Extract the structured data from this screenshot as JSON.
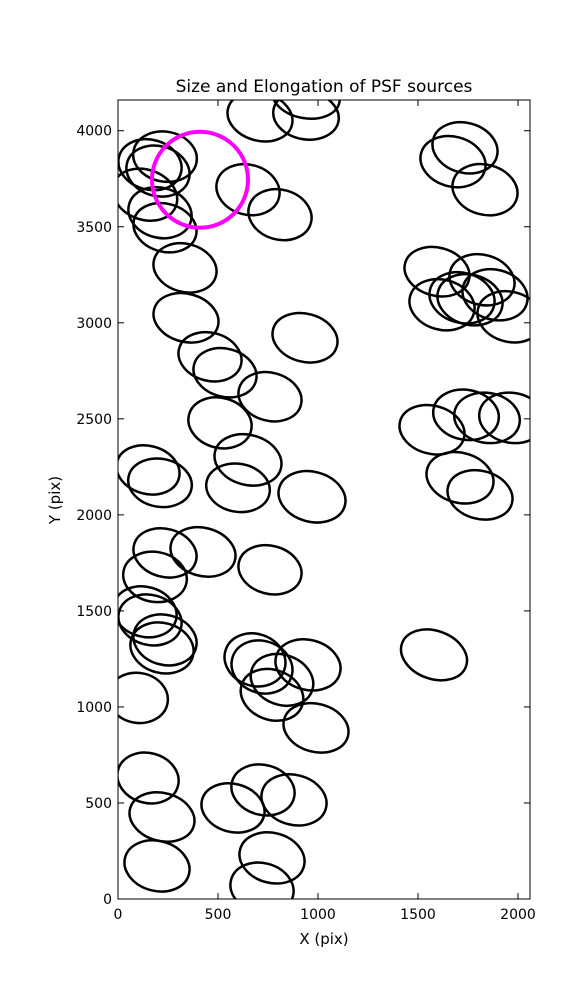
{
  "chart_data": {
    "type": "ellipse",
    "title": "Size and Elongation of PSF sources",
    "x_label": "X (pix)",
    "y_label": "Y (pix)",
    "xlim": [
      0,
      2060
    ],
    "ylim": [
      0,
      4160
    ],
    "xticks": [
      0,
      500,
      1000,
      1500,
      2000
    ],
    "yticks": [
      0,
      500,
      1000,
      1500,
      2000,
      2500,
      3000,
      3500,
      4000
    ],
    "color": "#000000",
    "x": [
      940,
      940,
      710,
      235,
      160,
      200,
      135,
      210,
      235,
      650,
      810,
      335,
      340,
      460,
      535,
      760,
      935,
      510,
      650,
      600,
      970,
      150,
      210,
      235,
      425,
      760,
      185,
      135,
      160,
      235,
      220,
      685,
      720,
      950,
      820,
      770,
      100,
      990,
      150,
      220,
      575,
      725,
      880,
      195,
      770,
      720,
      1580,
      1570,
      1710,
      1810,
      1740,
      1845,
      1970,
      1595,
      1620,
      1720,
      1760,
      1820,
      1885,
      1960,
      1735,
      1675,
      1835
    ],
    "y": [
      4180,
      4080,
      4073,
      3865,
      3823,
      3790,
      3667,
      3573,
      3495,
      3693,
      3563,
      3286,
      3026,
      2823,
      2740,
      2615,
      2922,
      2479,
      2286,
      2141,
      2094,
      2234,
      2167,
      1802,
      1807,
      1714,
      1677,
      1495,
      1453,
      1349,
      1307,
      1245,
      1208,
      1219,
      1141,
      1063,
      1047,
      891,
      630,
      427,
      474,
      568,
      516,
      172,
      214,
      57,
      1271,
      2443,
      2193,
      2104,
      2521,
      2505,
      2505,
      3266,
      3094,
      3130,
      3120,
      3224,
      3146,
      3031,
      3911,
      3839,
      3693
    ],
    "width": [
      340,
      330,
      330,
      320,
      320,
      320,
      330,
      320,
      320,
      320,
      320,
      320,
      330,
      320,
      320,
      320,
      330,
      320,
      340,
      320,
      340,
      320,
      320,
      320,
      330,
      320,
      320,
      320,
      320,
      320,
      320,
      310,
      310,
      330,
      320,
      320,
      300,
      330,
      310,
      330,
      320,
      320,
      330,
      330,
      330,
      320,
      340,
      330,
      340,
      330,
      330,
      330,
      330,
      330,
      330,
      330,
      330,
      330,
      330,
      330,
      330,
      330,
      330
    ],
    "height": [
      230,
      250,
      250,
      260,
      260,
      260,
      260,
      260,
      250,
      260,
      260,
      250,
      250,
      250,
      250,
      250,
      250,
      260,
      260,
      250,
      260,
      250,
      250,
      250,
      250,
      250,
      260,
      260,
      260,
      260,
      260,
      270,
      270,
      260,
      260,
      260,
      260,
      250,
      260,
      250,
      250,
      260,
      260,
      260,
      260,
      260,
      250,
      250,
      260,
      250,
      260,
      260,
      260,
      250,
      260,
      260,
      260,
      260,
      260,
      260,
      260,
      260,
      260
    ],
    "angle": [
      -10,
      -10,
      -15,
      -10,
      -15,
      -15,
      -20,
      -15,
      -15,
      -15,
      -15,
      -15,
      -15,
      -15,
      -15,
      -15,
      -15,
      -15,
      -15,
      -10,
      -15,
      -15,
      -10,
      -15,
      -15,
      -15,
      -10,
      -15,
      -15,
      -15,
      -15,
      -20,
      -20,
      -15,
      -20,
      -20,
      -10,
      -15,
      -15,
      -15,
      -15,
      -15,
      -15,
      -15,
      -15,
      -15,
      -20,
      -15,
      -15,
      -15,
      -10,
      -10,
      -10,
      -15,
      -15,
      -15,
      -15,
      -15,
      -15,
      -15,
      -15,
      -15,
      -15
    ],
    "highlight": {
      "x": 410,
      "y": 3745,
      "radius": 240,
      "color": "#ff00ff"
    }
  }
}
